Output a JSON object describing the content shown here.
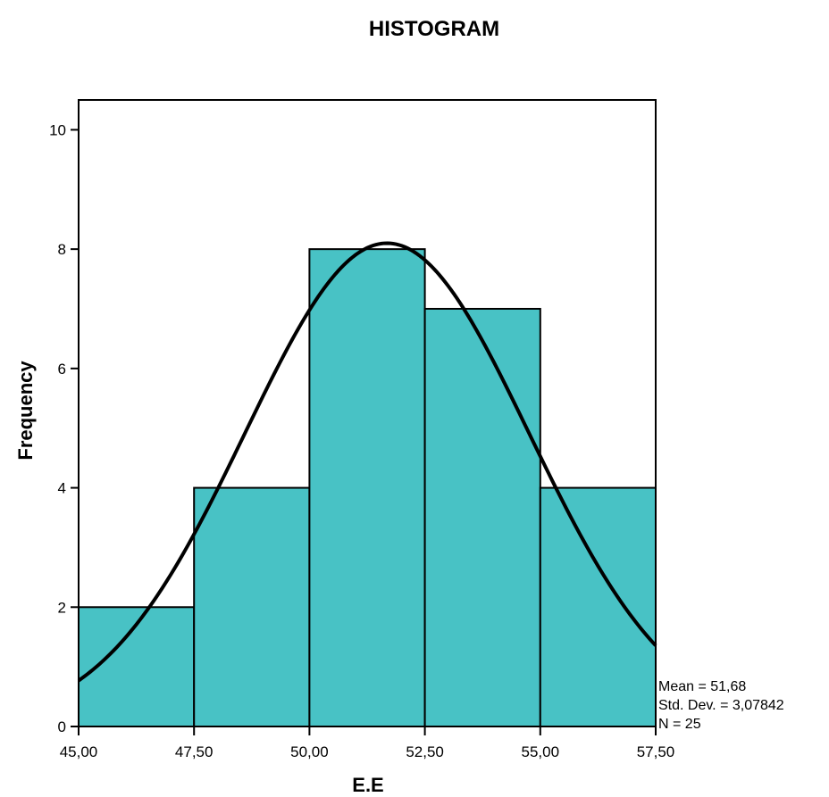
{
  "chart_data": {
    "type": "bar",
    "subtype": "histogram",
    "title": "HISTOGRAM",
    "xlabel": "E.E",
    "ylabel": "Frequency",
    "bins": [
      {
        "start": 45.0,
        "end": 47.5,
        "count": 2
      },
      {
        "start": 47.5,
        "end": 50.0,
        "count": 4
      },
      {
        "start": 50.0,
        "end": 52.5,
        "count": 8
      },
      {
        "start": 52.5,
        "end": 55.0,
        "count": 7
      },
      {
        "start": 55.0,
        "end": 57.5,
        "count": 4
      }
    ],
    "xlim": [
      45.0,
      57.5
    ],
    "ylim": [
      0,
      10.5
    ],
    "x_ticks": [
      45.0,
      47.5,
      50.0,
      52.5,
      55.0,
      57.5
    ],
    "x_tick_labels": [
      "45,00",
      "47,50",
      "50,00",
      "52,50",
      "55,00",
      "57,50"
    ],
    "y_ticks": [
      0,
      2,
      4,
      6,
      8,
      10
    ],
    "y_tick_labels": [
      "0",
      "2",
      "4",
      "6",
      "8",
      "10"
    ],
    "normal_curve": {
      "mean": 51.68,
      "std_dev": 3.07842,
      "n": 25,
      "bin_width": 2.5
    },
    "stats_lines": [
      "Mean = 51,68",
      "Std. Dev. = 3,07842",
      "N = 25"
    ],
    "colors": {
      "bar_fill": "#48c2c5",
      "bar_stroke": "#000000",
      "curve": "#000000",
      "frame": "#000000"
    },
    "grid": false
  }
}
